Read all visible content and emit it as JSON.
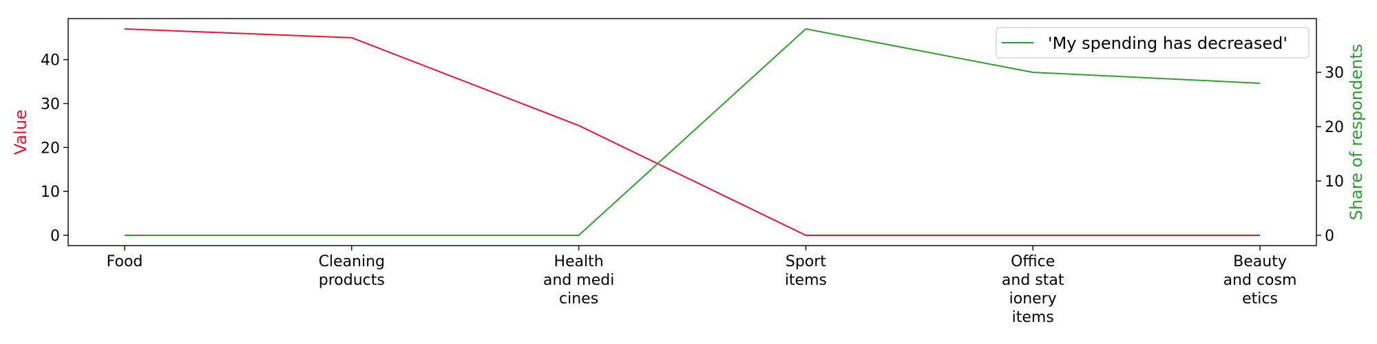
{
  "chart_data": {
    "type": "line",
    "categories": [
      [
        "Food"
      ],
      [
        "Cleaning",
        "products"
      ],
      [
        "Health",
        "and medi",
        "cines"
      ],
      [
        "Sport",
        "items"
      ],
      [
        "Office",
        "and stat",
        "ionery",
        "items"
      ],
      [
        "Beauty",
        "and cosm",
        "etics"
      ]
    ],
    "series": [
      {
        "values": [
          47,
          45,
          25,
          0,
          0,
          0
        ],
        "axis": "left",
        "color": "#ee1133"
      },
      {
        "name": "'My spending has decreased'",
        "values": [
          0,
          0,
          0,
          38,
          30,
          28
        ],
        "axis": "right",
        "color": "#2ca02c"
      }
    ],
    "ylabel": "Value",
    "ylabel_right": "Share of respondents",
    "ylim": [
      -2.35,
      49.35
    ],
    "ylim_right": [
      -1.9,
      39.9
    ],
    "yticks": [
      0,
      10,
      20,
      30,
      40
    ],
    "yticks_right": [
      0,
      10,
      20,
      30
    ],
    "legend_position": "top-right",
    "grid": false
  }
}
